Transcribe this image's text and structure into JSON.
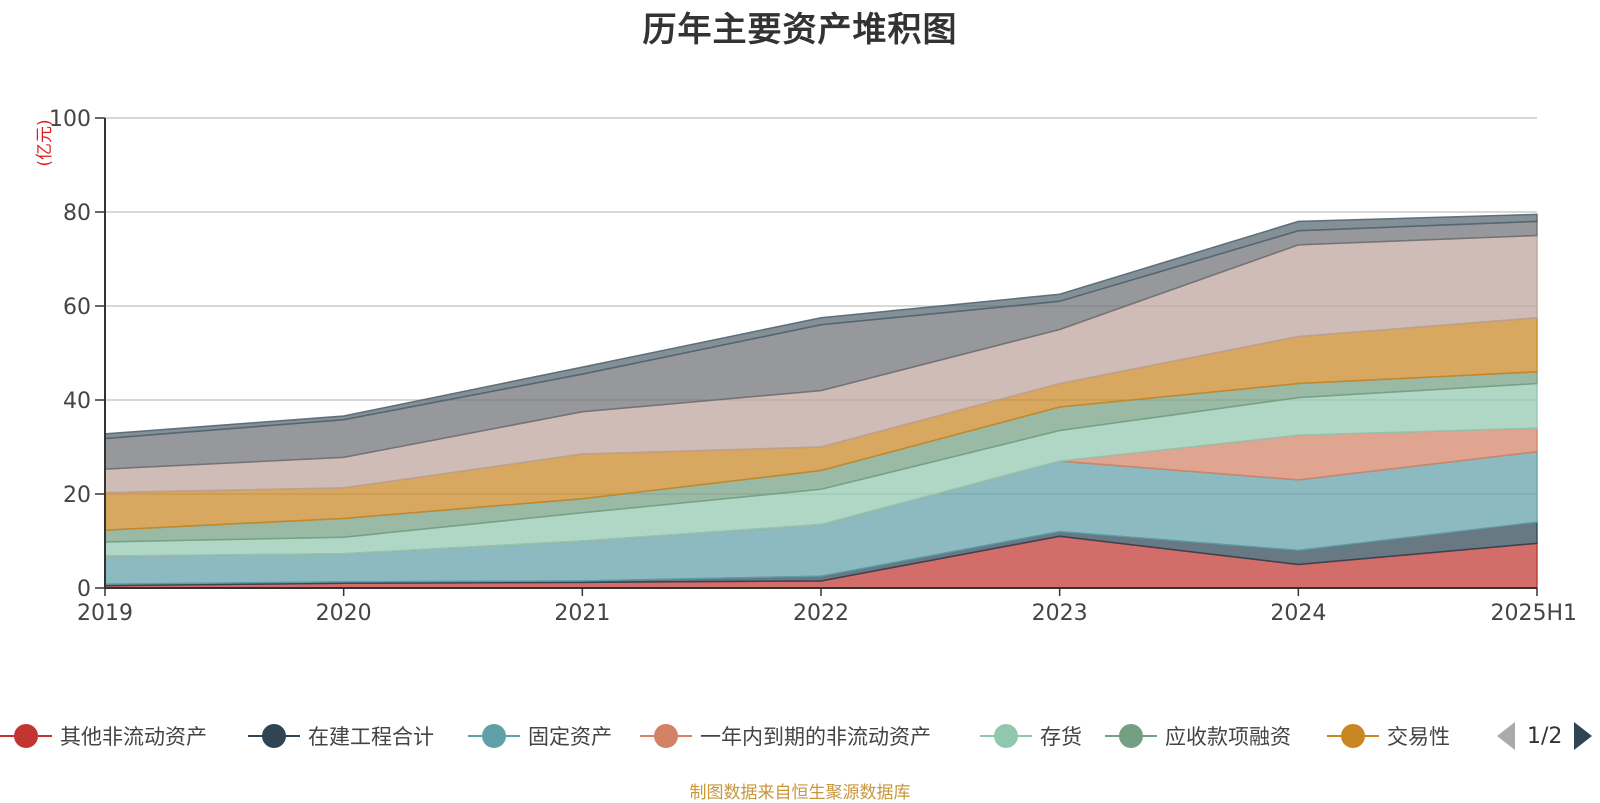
{
  "title": "历年主要资产堆积图",
  "footer": "制图数据来自恒生聚源数据库",
  "pager": {
    "text": "1/2"
  },
  "chart_data": {
    "type": "area",
    "stacked": true,
    "title": "历年主要资产堆积图",
    "ylabel": "(亿元)",
    "xlabel": "",
    "categories": [
      "2019",
      "2020",
      "2021",
      "2022",
      "2023",
      "2024",
      "2025H1"
    ],
    "ylim": [
      0,
      100
    ],
    "yticks": [
      0,
      20,
      40,
      60,
      80,
      100
    ],
    "grid": true,
    "legend_position": "bottom",
    "series": [
      {
        "name": "其他非流动资产",
        "color": "#c23531",
        "values": [
          0.5,
          1.0,
          1.2,
          1.5,
          11.0,
          5.0,
          9.5
        ]
      },
      {
        "name": "在建工程合计",
        "color": "#2f4554",
        "values": [
          0.3,
          0.3,
          0.3,
          1.0,
          1.0,
          3.0,
          4.5
        ]
      },
      {
        "name": "固定资产",
        "color": "#61a0a8",
        "values": [
          6.0,
          6.0,
          8.5,
          11.0,
          15.0,
          15.0,
          15.0
        ]
      },
      {
        "name": "一年内到期的非流动资产",
        "color": "#d48265",
        "values": [
          0.0,
          0.0,
          0.0,
          0.0,
          0.0,
          9.5,
          5.0
        ]
      },
      {
        "name": "存货",
        "color": "#91c7ae",
        "values": [
          3.0,
          3.5,
          6.0,
          7.5,
          6.5,
          8.0,
          9.5
        ]
      },
      {
        "name": "应收款项融资",
        "color": "#749f83",
        "values": [
          2.5,
          4.0,
          3.0,
          4.0,
          5.0,
          3.0,
          2.5
        ]
      },
      {
        "name": "交易性",
        "color": "#ca8622",
        "values": [
          8.0,
          6.5,
          9.5,
          5.0,
          5.0,
          10.0,
          11.5
        ]
      },
      {
        "name": "",
        "color": "#bda29a",
        "values": [
          5.0,
          6.5,
          9.0,
          12.0,
          11.5,
          19.5,
          17.5
        ]
      },
      {
        "name": "",
        "color": "#6e7074",
        "values": [
          6.5,
          8.0,
          8.0,
          14.0,
          6.0,
          3.0,
          3.0
        ]
      },
      {
        "name": "",
        "color": "#546570",
        "values": [
          1.0,
          0.8,
          1.5,
          1.5,
          1.5,
          2.0,
          1.5
        ]
      }
    ]
  }
}
